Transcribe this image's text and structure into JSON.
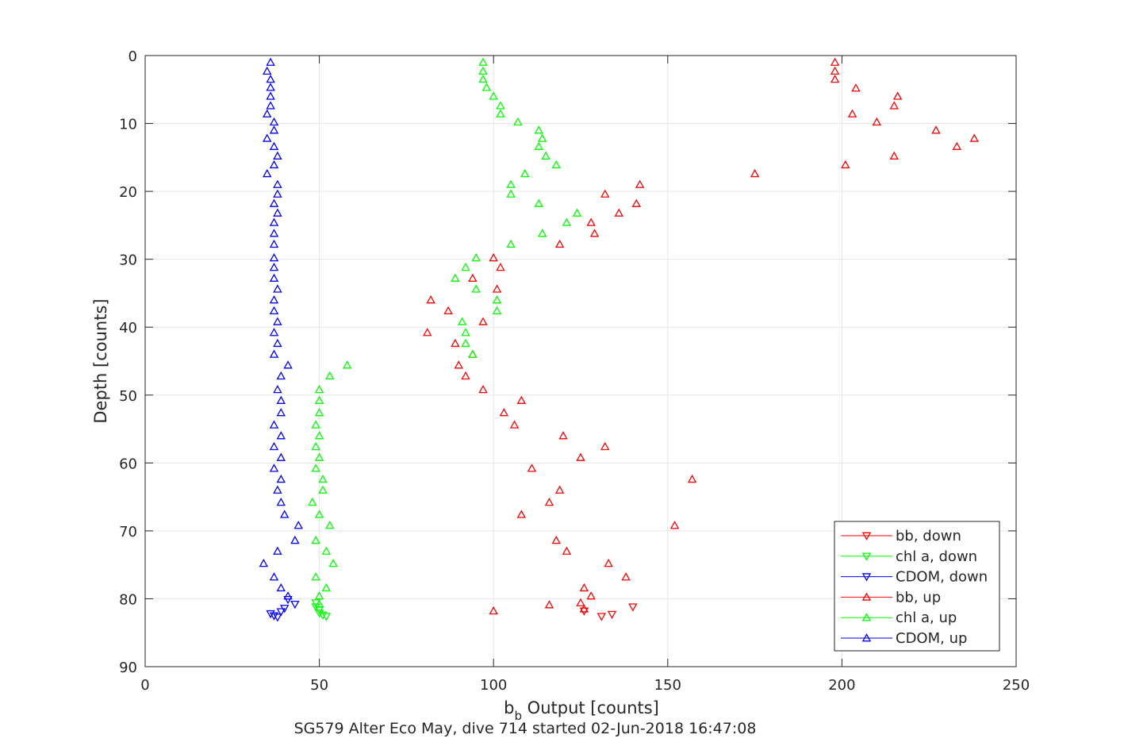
{
  "figure": {
    "caption": "SG579 Alter Eco May, dive 714 started 02-Jun-2018 16:47:08"
  },
  "chart_data": {
    "type": "scatter",
    "xlabel_main": "b",
    "xlabel_sub": "b",
    "xlabel_rest": " Output [counts]",
    "ylabel": "Depth [counts]",
    "xlim": [
      0,
      250
    ],
    "ylim": [
      0,
      90
    ],
    "y_reversed": true,
    "xticks": [
      0,
      50,
      100,
      150,
      200,
      250
    ],
    "yticks": [
      0,
      10,
      20,
      30,
      40,
      50,
      60,
      70,
      80,
      90
    ],
    "grid": true,
    "legend_position": "bottom-right",
    "series": [
      {
        "name": "bb, down",
        "color": "#ff0000",
        "marker": "triangle-down",
        "points": [
          [
            131,
            82.6
          ],
          [
            134,
            82.3
          ],
          [
            140,
            81.2
          ],
          [
            126,
            81.8
          ]
        ]
      },
      {
        "name": "chl a, down",
        "color": "#00ff00",
        "marker": "triangle-down",
        "points": [
          [
            49,
            80.6
          ],
          [
            50,
            81.6
          ],
          [
            50,
            82.1
          ],
          [
            51,
            82.4
          ],
          [
            52,
            82.6
          ],
          [
            49,
            81.2
          ]
        ]
      },
      {
        "name": "CDOM, down",
        "color": "#0000ff",
        "marker": "triangle-down",
        "points": [
          [
            36,
            82.2
          ],
          [
            37,
            82.5
          ],
          [
            38,
            82.7
          ],
          [
            39,
            81.9
          ],
          [
            40,
            81.4
          ],
          [
            43,
            80.8
          ],
          [
            41,
            80.1
          ]
        ]
      },
      {
        "name": "bb, up",
        "color": "#ff0000",
        "marker": "triangle-up",
        "points": [
          [
            198,
            1.0
          ],
          [
            198,
            2.3
          ],
          [
            198,
            3.5
          ],
          [
            204,
            4.8
          ],
          [
            216,
            6.0
          ],
          [
            215,
            7.4
          ],
          [
            203,
            8.6
          ],
          [
            210,
            9.8
          ],
          [
            227,
            11.0
          ],
          [
            238,
            12.2
          ],
          [
            233,
            13.4
          ],
          [
            215,
            14.8
          ],
          [
            201,
            16.1
          ],
          [
            175,
            17.4
          ],
          [
            142,
            19.0
          ],
          [
            132,
            20.4
          ],
          [
            141,
            21.8
          ],
          [
            136,
            23.2
          ],
          [
            128,
            24.6
          ],
          [
            129,
            26.2
          ],
          [
            119,
            27.8
          ],
          [
            100,
            29.8
          ],
          [
            102,
            31.2
          ],
          [
            94,
            32.8
          ],
          [
            101,
            34.4
          ],
          [
            82,
            36.0
          ],
          [
            87,
            37.6
          ],
          [
            97,
            39.2
          ],
          [
            81,
            40.8
          ],
          [
            89,
            42.4
          ],
          [
            94,
            44.0
          ],
          [
            90,
            45.6
          ],
          [
            92,
            47.2
          ],
          [
            97,
            49.2
          ],
          [
            108,
            50.8
          ],
          [
            103,
            52.6
          ],
          [
            106,
            54.4
          ],
          [
            120,
            56.0
          ],
          [
            132,
            57.6
          ],
          [
            125,
            59.2
          ],
          [
            111,
            60.8
          ],
          [
            157,
            62.4
          ],
          [
            119,
            64.0
          ],
          [
            116,
            65.8
          ],
          [
            108,
            67.6
          ],
          [
            152,
            69.2
          ],
          [
            118,
            71.4
          ],
          [
            121,
            73.0
          ],
          [
            133,
            74.8
          ],
          [
            138,
            76.8
          ],
          [
            126,
            78.4
          ],
          [
            128,
            79.6
          ],
          [
            125,
            80.6
          ],
          [
            116,
            80.9
          ],
          [
            126,
            81.5
          ],
          [
            100,
            81.8
          ]
        ]
      },
      {
        "name": "chl a, up",
        "color": "#00ff00",
        "marker": "triangle-up",
        "points": [
          [
            97,
            1.0
          ],
          [
            97,
            2.3
          ],
          [
            97,
            3.5
          ],
          [
            98,
            4.7
          ],
          [
            100,
            6.0
          ],
          [
            102,
            7.4
          ],
          [
            102,
            8.6
          ],
          [
            107,
            9.8
          ],
          [
            113,
            11.0
          ],
          [
            114,
            12.2
          ],
          [
            113,
            13.4
          ],
          [
            115,
            14.8
          ],
          [
            118,
            16.1
          ],
          [
            109,
            17.4
          ],
          [
            105,
            19.0
          ],
          [
            105,
            20.4
          ],
          [
            113,
            21.8
          ],
          [
            124,
            23.2
          ],
          [
            121,
            24.6
          ],
          [
            114,
            26.2
          ],
          [
            105,
            27.8
          ],
          [
            95,
            29.8
          ],
          [
            92,
            31.2
          ],
          [
            89,
            32.8
          ],
          [
            95,
            34.4
          ],
          [
            101,
            36.0
          ],
          [
            101,
            37.6
          ],
          [
            91,
            39.2
          ],
          [
            92,
            40.8
          ],
          [
            92,
            42.4
          ],
          [
            94,
            44.0
          ],
          [
            58,
            45.6
          ],
          [
            53,
            47.2
          ],
          [
            50,
            49.2
          ],
          [
            50,
            50.8
          ],
          [
            50,
            52.6
          ],
          [
            49,
            54.4
          ],
          [
            50,
            56.0
          ],
          [
            49,
            57.6
          ],
          [
            50,
            59.2
          ],
          [
            49,
            60.8
          ],
          [
            51,
            62.4
          ],
          [
            51,
            64.0
          ],
          [
            48,
            65.8
          ],
          [
            50,
            67.6
          ],
          [
            53,
            69.2
          ],
          [
            49,
            71.4
          ],
          [
            52,
            73.0
          ],
          [
            54,
            74.8
          ],
          [
            49,
            76.8
          ],
          [
            52,
            78.4
          ],
          [
            50,
            79.6
          ],
          [
            50,
            80.8
          ]
        ]
      },
      {
        "name": "CDOM, up",
        "color": "#0000ff",
        "marker": "triangle-up",
        "points": [
          [
            36,
            1.0
          ],
          [
            35,
            2.3
          ],
          [
            36,
            3.5
          ],
          [
            36,
            4.7
          ],
          [
            36,
            6.0
          ],
          [
            36,
            7.4
          ],
          [
            35,
            8.6
          ],
          [
            37,
            9.8
          ],
          [
            37,
            11.0
          ],
          [
            35,
            12.2
          ],
          [
            37,
            13.4
          ],
          [
            38,
            14.8
          ],
          [
            37,
            16.1
          ],
          [
            35,
            17.4
          ],
          [
            38,
            19.0
          ],
          [
            38,
            20.4
          ],
          [
            37,
            21.8
          ],
          [
            38,
            23.2
          ],
          [
            37,
            24.6
          ],
          [
            37,
            26.2
          ],
          [
            37,
            27.8
          ],
          [
            37,
            29.8
          ],
          [
            37,
            31.2
          ],
          [
            37,
            32.8
          ],
          [
            38,
            34.4
          ],
          [
            37,
            36.0
          ],
          [
            37,
            37.6
          ],
          [
            38,
            39.2
          ],
          [
            37,
            40.8
          ],
          [
            38,
            42.4
          ],
          [
            37,
            44.0
          ],
          [
            41,
            45.6
          ],
          [
            39,
            47.2
          ],
          [
            38,
            49.2
          ],
          [
            39,
            50.8
          ],
          [
            39,
            52.6
          ],
          [
            37,
            54.4
          ],
          [
            39,
            56.0
          ],
          [
            37,
            57.6
          ],
          [
            39,
            59.2
          ],
          [
            37,
            60.8
          ],
          [
            39,
            62.4
          ],
          [
            38,
            64.0
          ],
          [
            39,
            65.8
          ],
          [
            40,
            67.6
          ],
          [
            44,
            69.2
          ],
          [
            43,
            71.4
          ],
          [
            38,
            73.0
          ],
          [
            34,
            74.8
          ],
          [
            37,
            76.8
          ],
          [
            39,
            78.4
          ],
          [
            41,
            79.6
          ]
        ]
      }
    ]
  }
}
